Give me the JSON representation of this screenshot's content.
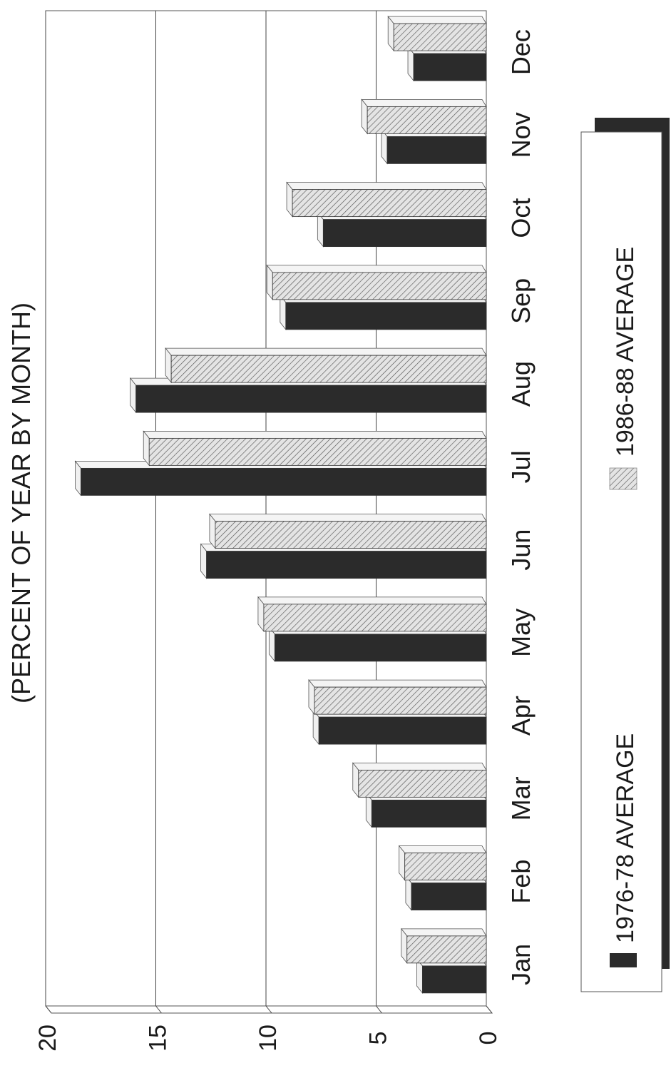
{
  "chart_data": {
    "type": "bar",
    "orientation": "horizontal",
    "title": "(PERCENT OF YEAR BY MONTH)",
    "categories": [
      "Jan",
      "Feb",
      "Mar",
      "Apr",
      "May",
      "Jun",
      "Jul",
      "Aug",
      "Sep",
      "Oct",
      "Nov",
      "Dec"
    ],
    "series": [
      {
        "name": "1976-78 AVERAGE",
        "color": "#2b2b2b",
        "pattern": "solid",
        "values": [
          2.9,
          3.4,
          5.2,
          7.6,
          9.6,
          12.7,
          18.4,
          15.9,
          9.1,
          7.4,
          4.5,
          3.3
        ]
      },
      {
        "name": "1986-88 AVERAGE",
        "color": "#d8d8d8",
        "pattern": "hatched",
        "values": [
          3.6,
          3.7,
          5.8,
          7.8,
          10.1,
          12.3,
          15.3,
          14.3,
          9.7,
          8.8,
          5.4,
          4.2
        ]
      }
    ],
    "value_axis": {
      "ticks": [
        "0",
        "5",
        "10",
        "15",
        "20"
      ],
      "range": [
        0,
        20
      ]
    },
    "grid": true,
    "legend_position": "bottom",
    "style": "3d"
  }
}
